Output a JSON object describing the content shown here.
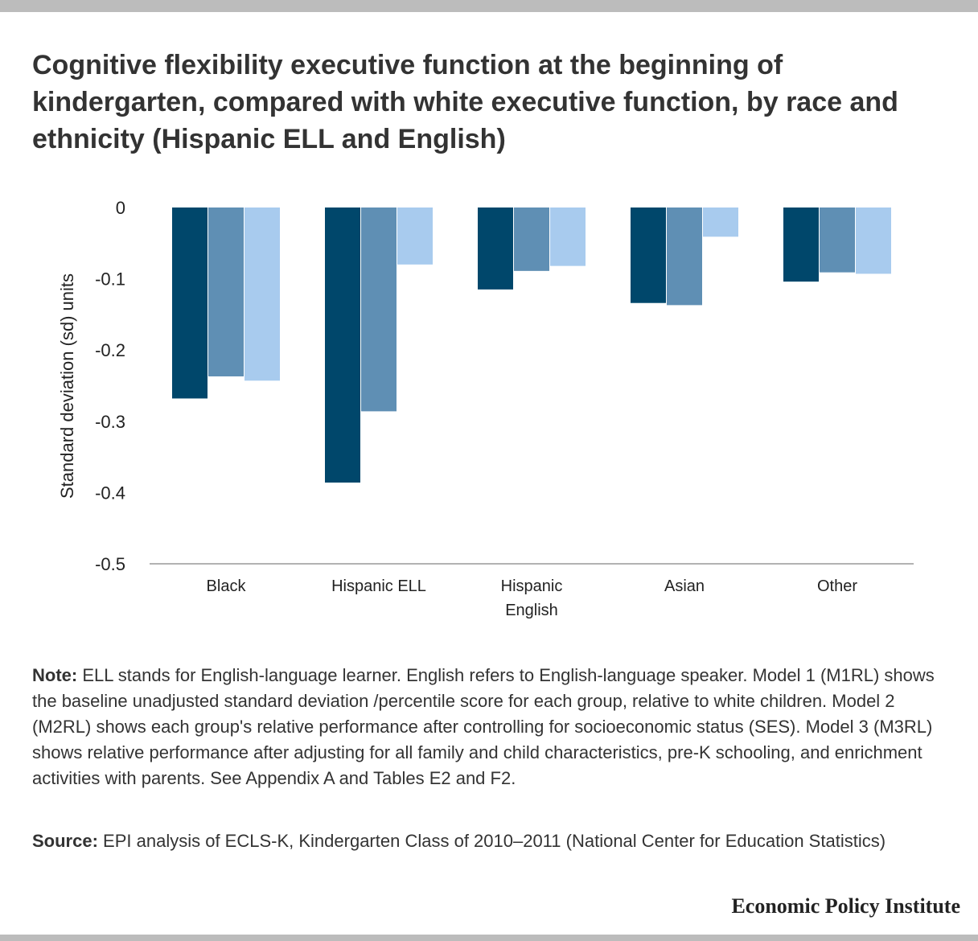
{
  "title": "Cognitive flexibility executive function at the beginning of kindergarten, compared with white executive function, by race and ethnicity (Hispanic ELL and English)",
  "note": {
    "label": "Note:",
    "text": "ELL stands for English-language learner. English refers to English-language speaker. Model 1 (M1RL) shows the baseline unadjusted standard deviation /percentile score for each group, relative to white children. Model 2 (M2RL) shows each group's relative performance after controlling for socioeconomic status (SES). Model 3 (M3RL) shows relative performance after adjusting for all family and child characteristics, pre-K schooling, and enrichment activities with parents. See Appendix A and Tables E2 and F2."
  },
  "source": {
    "label": "Source:",
    "text": "EPI analysis of ECLS-K, Kindergarten Class of 2010–2011 (National Center for Education Statistics)"
  },
  "brand": "Economic Policy Institute",
  "colors": {
    "series": [
      "#00476b",
      "#5f8fb4",
      "#a8cbee"
    ],
    "axis": "#999999"
  },
  "chart_data": {
    "type": "bar",
    "title": "",
    "xlabel": "",
    "ylabel": "Standard deviation (sd) units",
    "ylim": [
      -0.5,
      0
    ],
    "yticks": [
      "0",
      "-0.1",
      "-0.2",
      "-0.3",
      "-0.4",
      "-0.5"
    ],
    "ytick_values": [
      0,
      -0.1,
      -0.2,
      -0.3,
      -0.4,
      -0.5
    ],
    "categories": [
      [
        "Black"
      ],
      [
        "Hispanic ELL"
      ],
      [
        "Hispanic",
        "English"
      ],
      [
        "Asian"
      ],
      [
        "Other"
      ]
    ],
    "series": [
      {
        "values": [
          -0.268,
          -0.386,
          -0.115,
          -0.134,
          -0.104
        ]
      },
      {
        "values": [
          -0.237,
          -0.286,
          -0.089,
          -0.137,
          -0.091
        ]
      },
      {
        "values": [
          -0.243,
          -0.08,
          -0.082,
          -0.041,
          -0.093
        ]
      }
    ],
    "grid": false,
    "legend": "none"
  }
}
